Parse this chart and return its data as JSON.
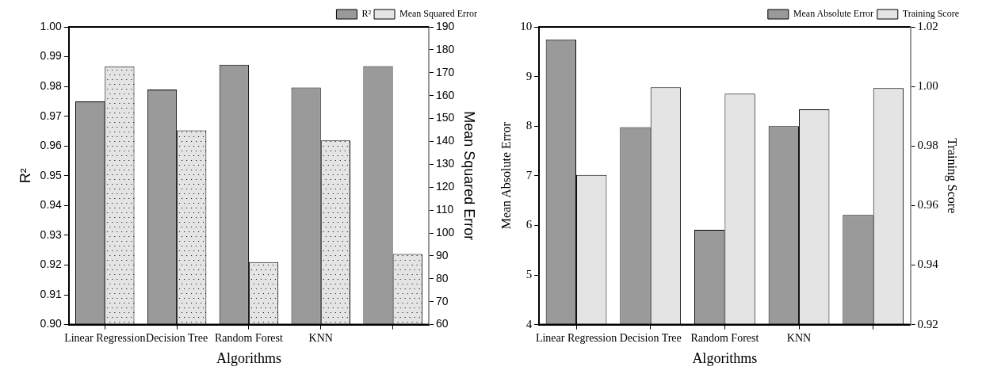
{
  "chart_data": [
    {
      "type": "bar",
      "xlabel": "Algorithms",
      "ylabel": "R²",
      "y2label": "Mean Squared Error",
      "categories": [
        "Linear Regression",
        "Decision Tree",
        "Random Forest",
        "KNN",
        null
      ],
      "series": [
        {
          "name": "R²",
          "color": "#9a9a9a",
          "values": [
            0.975,
            0.979,
            0.9873,
            0.9796,
            0.9868
          ]
        },
        {
          "name": "Mean Squared Error",
          "color": "#e4e4e4",
          "axis": "y2",
          "values": [
            172.8,
            144.8,
            87.3,
            140.4,
            90.8
          ]
        }
      ],
      "ylim": [
        0.9,
        1.0
      ],
      "yticks": [
        {
          "value": 0.9,
          "label": "0.90"
        },
        {
          "value": 0.91,
          "label": "0.91"
        },
        {
          "value": 0.92,
          "label": "0.92"
        },
        {
          "value": 0.93,
          "label": "0.93"
        },
        {
          "value": 0.94,
          "label": "0.94"
        },
        {
          "value": 0.95,
          "label": "0.95"
        },
        {
          "value": 0.96,
          "label": "0.96"
        },
        {
          "value": 0.97,
          "label": "0.97"
        },
        {
          "value": 0.98,
          "label": "0.98"
        },
        {
          "value": 0.99,
          "label": "0.99"
        },
        {
          "value": 1.0,
          "label": "1.00"
        }
      ],
      "y2lim": [
        60,
        190
      ],
      "y2ticks": [
        60,
        70,
        80,
        90,
        100,
        110,
        120,
        130,
        140,
        150,
        160,
        170,
        180,
        190
      ],
      "legend": "top right"
    },
    {
      "type": "bar",
      "xlabel": "Algorithms",
      "ylabel": "Mean Absolute Error",
      "y2label": "Training Score",
      "categories": [
        "Linear Regression",
        "Decision Tree",
        "Random Forest",
        "KNN",
        null
      ],
      "series": [
        {
          "name": "Mean Absolute Error",
          "color": "#9a9a9a",
          "values": [
            9.75,
            7.98,
            5.91,
            8.0,
            6.21
          ]
        },
        {
          "name": "Training Score",
          "color": "#e4e4e4",
          "axis": "y2",
          "values": [
            0.9703,
            0.9997,
            0.9976,
            0.9923,
            0.9994
          ]
        }
      ],
      "ylim": [
        4,
        10
      ],
      "yticks": [
        4,
        5,
        6,
        7,
        8,
        9,
        10
      ],
      "y2lim": [
        0.92,
        1.02
      ],
      "y2ticks": [
        {
          "value": 0.92,
          "label": "0.92"
        },
        {
          "value": 0.94,
          "label": "0.94"
        },
        {
          "value": 0.96,
          "label": "0.96"
        },
        {
          "value": 0.98,
          "label": "0.98"
        },
        {
          "value": 1.0,
          "label": "1.00"
        },
        {
          "value": 1.02,
          "label": "1.02"
        }
      ],
      "legend": "top right"
    }
  ]
}
